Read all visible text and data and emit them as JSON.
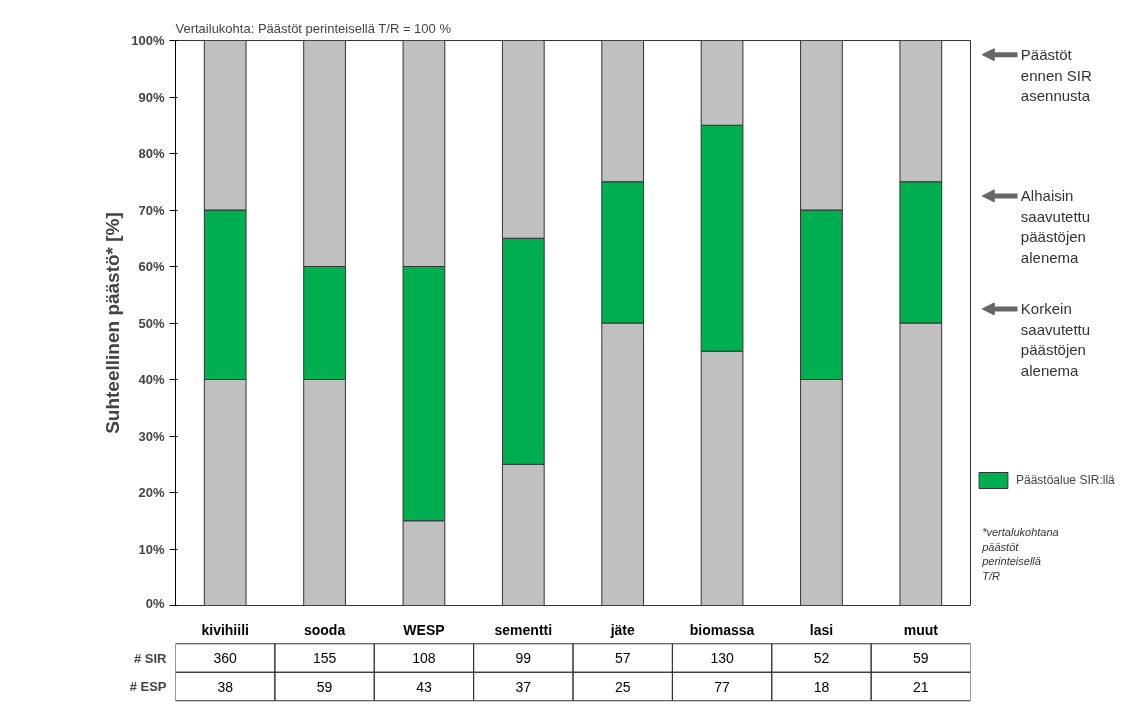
{
  "chart_data": {
    "type": "bar",
    "stacked": true,
    "subtitle": "Vertailukohta: Päästöt perinteisellä T/R = 100 %",
    "ylabel": "Suhteellinen päästö* [%]",
    "categories": [
      "kivihiili",
      "sooda",
      "WESP",
      "sementti",
      "jäte",
      "biomassa",
      "lasi",
      "muut"
    ],
    "series": [
      {
        "color": "#c0c0c0",
        "values": [
          40,
          40,
          15,
          25,
          50,
          45,
          40,
          50
        ]
      },
      {
        "name": "Päästöalue SIR:llä",
        "color": "#00b050",
        "values": [
          30,
          20,
          45,
          40,
          25,
          40,
          30,
          25
        ]
      },
      {
        "color": "#c0c0c0",
        "values": [
          30,
          40,
          40,
          35,
          25,
          15,
          30,
          25
        ]
      }
    ],
    "ylim": [
      0,
      100
    ],
    "yticks": [
      {
        "value": 0,
        "label": "0%"
      },
      {
        "value": 10,
        "label": "10%"
      },
      {
        "value": 20,
        "label": "20%"
      },
      {
        "value": 30,
        "label": "30%"
      },
      {
        "value": 40,
        "label": "40%"
      },
      {
        "value": 50,
        "label": "50%"
      },
      {
        "value": 60,
        "label": "60%"
      },
      {
        "value": 70,
        "label": "70%"
      },
      {
        "value": 80,
        "label": "80%"
      },
      {
        "value": 90,
        "label": "90%"
      },
      {
        "value": 100,
        "label": "100%"
      }
    ],
    "grid": false,
    "legend": "right",
    "annotations": [
      "Päästöt ennen SIR asennusta",
      "Alhaisin saavutettu päästöjen alenema",
      "Korkein saavutettu päästöjen alenema",
      "*vertalukohtana päästöt perinteisellä T/R",
      "# SIR",
      "360",
      "155",
      "108",
      "99",
      "57",
      "130",
      "52",
      "59",
      "# ESP",
      "38",
      "59",
      "43",
      "37",
      "25",
      "77",
      "18",
      "21"
    ]
  }
}
